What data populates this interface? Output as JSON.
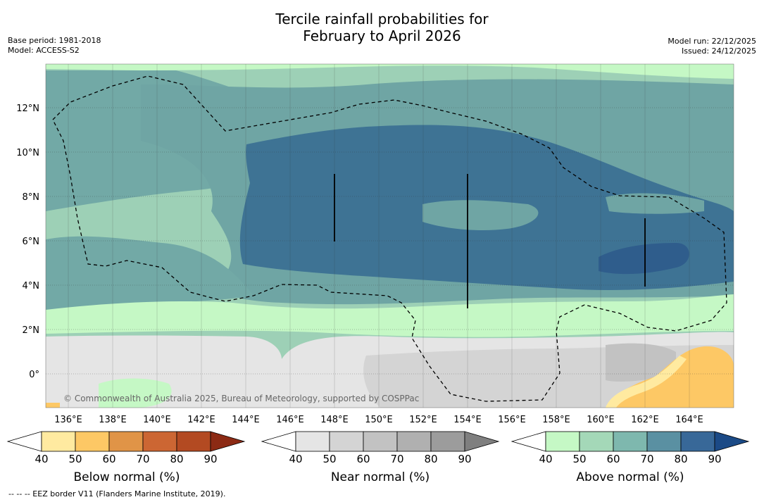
{
  "title_line1": "Tercile rainfall probabilities for",
  "title_line2": "February to April 2026",
  "left_meta": {
    "base_period": "Base period: 1981-2018",
    "model": "Model: ACCESS-S2"
  },
  "right_meta": {
    "model_run": "Model run: 22/12/2025",
    "issued": "Issued: 24/12/2025"
  },
  "map": {
    "lat_labels": [
      "12°N",
      "10°N",
      "8°N",
      "6°N",
      "4°N",
      "2°N",
      "0°"
    ],
    "lon_labels": [
      "136°E",
      "138°E",
      "140°E",
      "142°E",
      "144°E",
      "146°E",
      "148°E",
      "150°E",
      "152°E",
      "154°E",
      "156°E",
      "158°E",
      "160°E",
      "162°E",
      "164°E"
    ],
    "copyright": "© Commonwealth of Australia 2025, Bureau of Meteorology, supported by COSPPac"
  },
  "colorbars": [
    {
      "label": "Below normal (%)",
      "ticks": [
        "40",
        "50",
        "60",
        "70",
        "80",
        "90"
      ],
      "colors": [
        "#ffffff",
        "#ffeaa0",
        "#fdc865",
        "#e09447",
        "#cc6633",
        "#b34a22",
        "#8c2a14"
      ]
    },
    {
      "label": "Near normal (%)",
      "ticks": [
        "40",
        "50",
        "60",
        "70",
        "80",
        "90"
      ],
      "colors": [
        "#ffffff",
        "#e5e5e5",
        "#d4d4d4",
        "#c2c2c2",
        "#b0b0b0",
        "#9c9c9c",
        "#7f7f7f"
      ]
    },
    {
      "label": "Above normal (%)",
      "ticks": [
        "40",
        "50",
        "60",
        "70",
        "80",
        "90"
      ],
      "colors": [
        "#ffffff",
        "#c5f8c5",
        "#a4d8b8",
        "#7eb8ae",
        "#5a90a2",
        "#386898",
        "#1b4a86"
      ]
    }
  ],
  "footnote": "--  --  -- EEZ border V11 (Flanders Marine Institute, 2019)."
}
